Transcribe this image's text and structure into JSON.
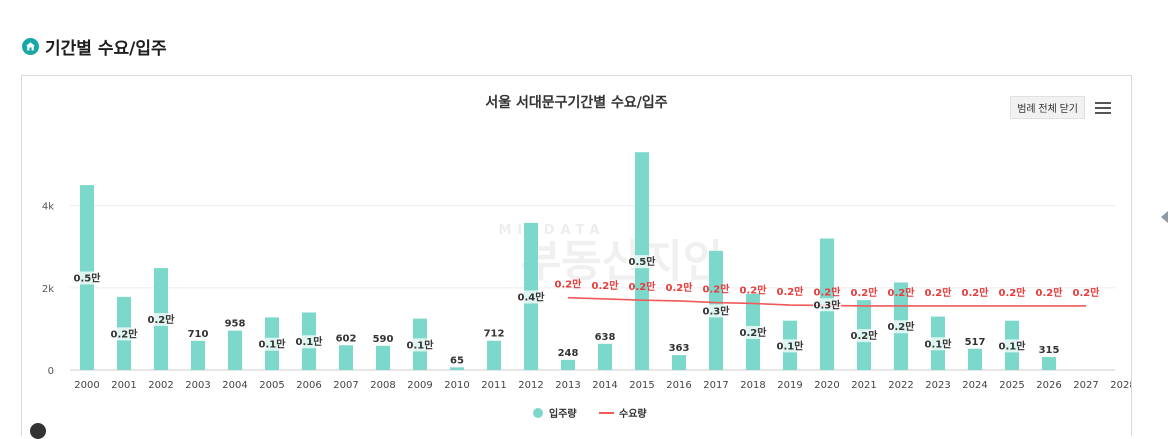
{
  "section": {
    "title": "기간별 수요/입주",
    "icon": "home-icon"
  },
  "toolbar": {
    "legend_button": "범례 전체 닫기",
    "menu_icon": "hamburger-menu-icon"
  },
  "watermark": {
    "text_en": "MICDATA",
    "text_ko": "부동산지인"
  },
  "colors": {
    "bar": "#7dd8cc",
    "line": "#f05a5a",
    "accent": "#17a7a6"
  },
  "chart_data": {
    "type": "bar",
    "title": "서울 서대문구기간별 수요/입주",
    "categories": [
      "2000",
      "2001",
      "2002",
      "2003",
      "2004",
      "2005",
      "2006",
      "2007",
      "2008",
      "2009",
      "2010",
      "2011",
      "2012",
      "2013",
      "2014",
      "2015",
      "2016",
      "2017",
      "2018",
      "2019",
      "2020",
      "2021",
      "2022",
      "2023",
      "2024",
      "2025",
      "2026",
      "2027",
      "2028"
    ],
    "ylim": [
      0,
      5500
    ],
    "yticks": [
      0,
      2000,
      4000
    ],
    "ytick_labels": [
      "0",
      "2k",
      "4k"
    ],
    "grid": true,
    "legend_position": "bottom",
    "series": [
      {
        "name": "입주량",
        "type": "bar",
        "values": [
          4500,
          1780,
          2480,
          710,
          958,
          1280,
          1400,
          602,
          590,
          1250,
          65,
          712,
          3580,
          248,
          638,
          5300,
          363,
          2900,
          1850,
          1200,
          3200,
          1700,
          2130,
          1300,
          517,
          1200,
          315,
          null,
          null
        ],
        "labels": [
          "0.5만",
          "0.2만",
          "0.2만",
          "710",
          "958",
          "0.1만",
          "0.1만",
          "602",
          "590",
          "0.1만",
          "65",
          "712",
          "0.4만",
          "248",
          "638",
          "0.5만",
          "363",
          "0.3만",
          "0.2만",
          "0.1만",
          "0.3만",
          "0.2만",
          "0.2만",
          "0.1만",
          "517",
          "0.1만",
          "315",
          "",
          ""
        ]
      },
      {
        "name": "수요량",
        "type": "line",
        "values": [
          null,
          null,
          null,
          null,
          null,
          null,
          null,
          null,
          null,
          null,
          null,
          null,
          null,
          1760,
          1730,
          1700,
          1680,
          1640,
          1620,
          1580,
          1570,
          1560,
          1560,
          1560,
          1560,
          1560,
          1560,
          1560,
          null
        ],
        "labels": [
          "",
          "",
          "",
          "",
          "",
          "",
          "",
          "",
          "",
          "",
          "",
          "",
          "",
          "0.2만",
          "0.2만",
          "0.2만",
          "0.2만",
          "0.2만",
          "0.2만",
          "0.2만",
          "0.2만",
          "0.2만",
          "0.2만",
          "0.2만",
          "0.2만",
          "0.2만",
          "0.2만",
          "0.2만",
          ""
        ]
      }
    ]
  }
}
